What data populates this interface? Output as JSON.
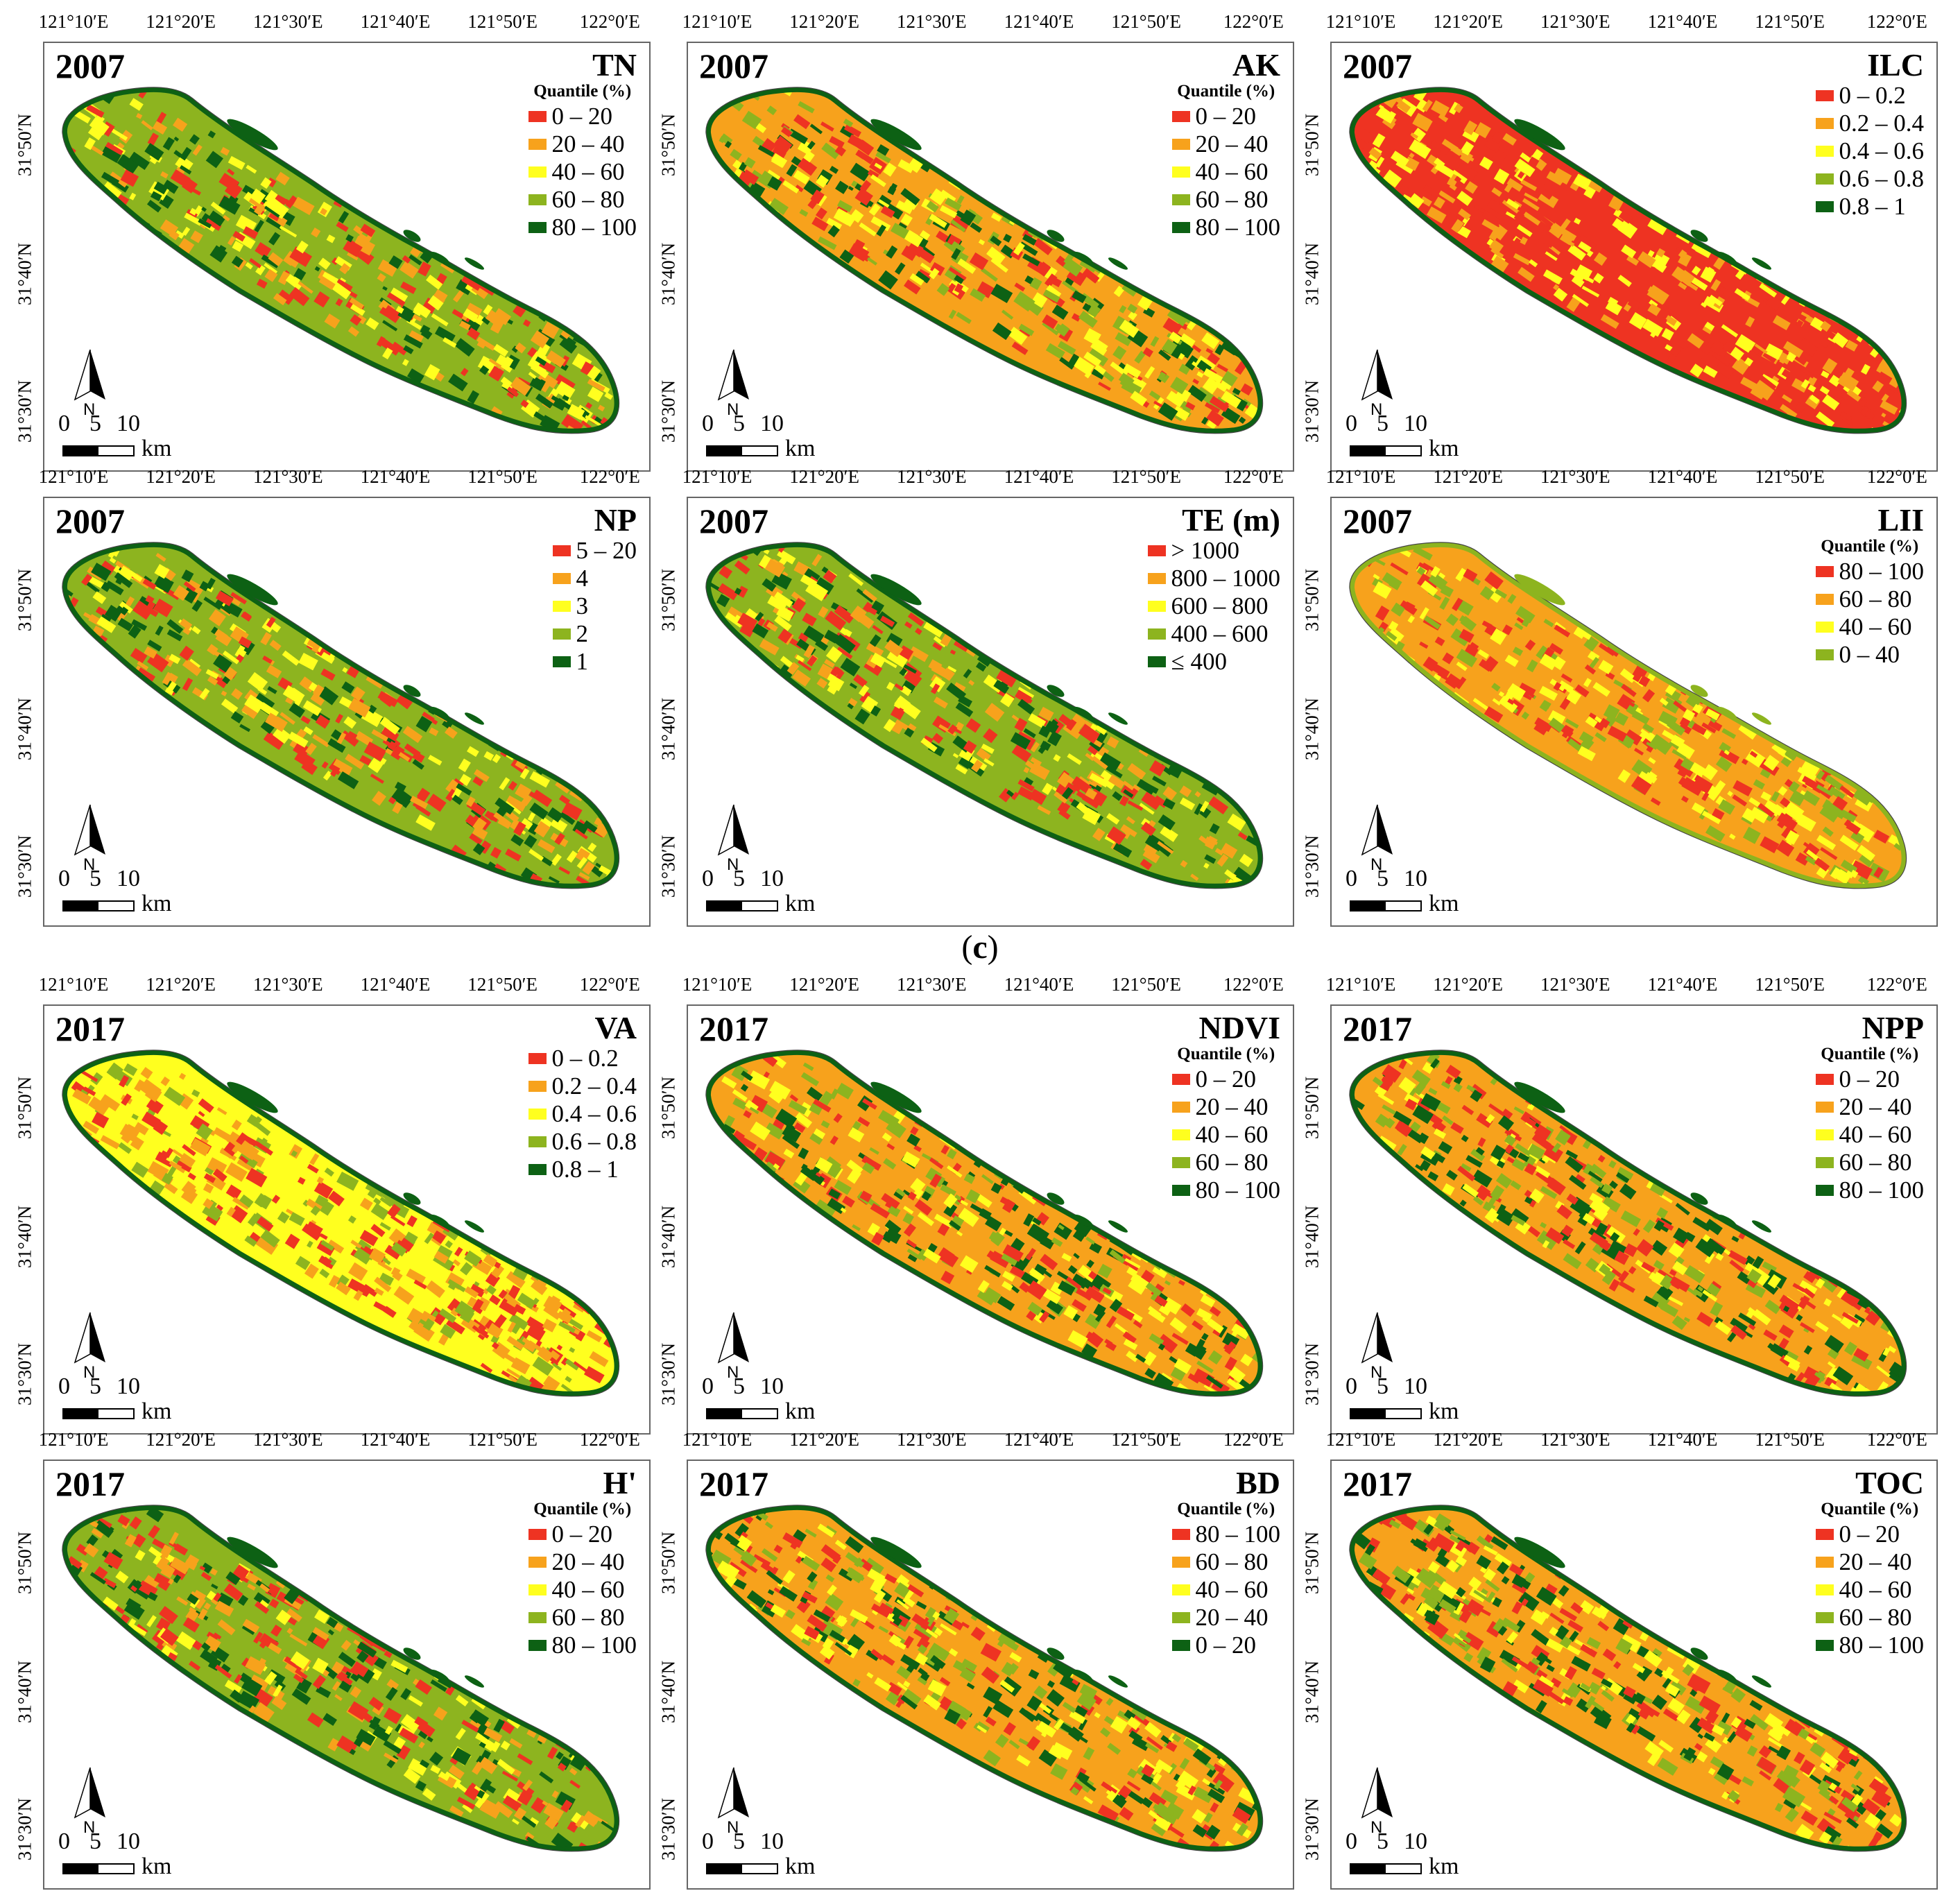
{
  "figure": {
    "caption_open": "(",
    "caption_letter": "c",
    "caption_close": ")",
    "longitude_ticks": [
      "121°10′E",
      "121°20′E",
      "121°30′E",
      "121°40′E",
      "121°50′E",
      "122°0′E"
    ],
    "latitude_ticks": [
      "31°50′N",
      "31°40′N",
      "31°30′N"
    ],
    "scale": {
      "zero": "0",
      "five": "5",
      "ten": "10",
      "unit": "km"
    },
    "north_label": "N"
  },
  "colors": {
    "red": "#ee3322",
    "orange": "#f7a21c",
    "yellow": "#ffff1f",
    "lightgreen": "#8db41f",
    "darkgreen": "#0d6114"
  },
  "panels": [
    {
      "year": "2007",
      "title": "TN",
      "subtitle": "Quantile (%)",
      "legend": [
        {
          "label": "0 – 20",
          "color": "#ee3322"
        },
        {
          "label": "20 – 40",
          "color": "#f7a21c"
        },
        {
          "label": "40 – 60",
          "color": "#ffff1f"
        },
        {
          "label": "60 – 80",
          "color": "#8db41f"
        },
        {
          "label": "80 – 100",
          "color": "#0d6114"
        }
      ],
      "fill": {
        "base": "#8db41f",
        "edge": "#0d6114",
        "spots": [
          "#ee3322",
          "#ffff1f",
          "#0d6114",
          "#f7a21c"
        ]
      }
    },
    {
      "year": "2007",
      "title": "AK",
      "subtitle": "Quantile (%)",
      "legend": [
        {
          "label": "0 – 20",
          "color": "#ee3322"
        },
        {
          "label": "20 – 40",
          "color": "#f7a21c"
        },
        {
          "label": "40 – 60",
          "color": "#ffff1f"
        },
        {
          "label": "60 – 80",
          "color": "#8db41f"
        },
        {
          "label": "80 – 100",
          "color": "#0d6114"
        }
      ],
      "fill": {
        "base": "#f7a21c",
        "edge": "#0d6114",
        "spots": [
          "#ee3322",
          "#ffff1f",
          "#8db41f",
          "#0d6114"
        ]
      }
    },
    {
      "year": "2007",
      "title": "ILC",
      "subtitle": "",
      "legend": [
        {
          "label": "0 – 0.2",
          "color": "#ee3322"
        },
        {
          "label": "0.2 – 0.4",
          "color": "#f7a21c"
        },
        {
          "label": "0.4 – 0.6",
          "color": "#ffff1f"
        },
        {
          "label": "0.6 – 0.8",
          "color": "#8db41f"
        },
        {
          "label": "0.8 – 1",
          "color": "#0d6114"
        }
      ],
      "fill": {
        "base": "#ee3322",
        "edge": "#0d6114",
        "spots": [
          "#ffff1f",
          "#f7a21c",
          "#ee3322"
        ]
      }
    },
    {
      "year": "2007",
      "title": "NP",
      "subtitle": "",
      "legend": [
        {
          "label": "5 – 20",
          "color": "#ee3322"
        },
        {
          "label": "4",
          "color": "#f7a21c"
        },
        {
          "label": "3",
          "color": "#ffff1f"
        },
        {
          "label": "2",
          "color": "#8db41f"
        },
        {
          "label": "1",
          "color": "#0d6114"
        }
      ],
      "fill": {
        "base": "#8db41f",
        "edge": "#0d6114",
        "spots": [
          "#ffff1f",
          "#ee3322",
          "#0d6114",
          "#f7a21c"
        ]
      }
    },
    {
      "year": "2007",
      "title": "TE (m)",
      "subtitle": "",
      "legend": [
        {
          "label": "> 1000",
          "color": "#ee3322"
        },
        {
          "label": "800 – 1000",
          "color": "#f7a21c"
        },
        {
          "label": "600 – 800",
          "color": "#ffff1f"
        },
        {
          "label": "400 – 600",
          "color": "#8db41f"
        },
        {
          "label": "≤ 400",
          "color": "#0d6114"
        }
      ],
      "fill": {
        "base": "#8db41f",
        "edge": "#0d6114",
        "spots": [
          "#ffff1f",
          "#ee3322",
          "#0d6114",
          "#f7a21c"
        ]
      }
    },
    {
      "year": "2007",
      "title": "LII",
      "subtitle": "Quantile (%)",
      "legend": [
        {
          "label": "80 – 100",
          "color": "#ee3322"
        },
        {
          "label": "60 – 80",
          "color": "#f7a21c"
        },
        {
          "label": "40 – 60",
          "color": "#ffff1f"
        },
        {
          "label": "0 – 40",
          "color": "#8db41f"
        }
      ],
      "fill": {
        "base": "#f7a21c",
        "edge": "#8db41f",
        "spots": [
          "#ee3322",
          "#ffff1f",
          "#8db41f"
        ]
      }
    },
    {
      "year": "2017",
      "title": "VA",
      "subtitle": "",
      "legend": [
        {
          "label": "0 – 0.2",
          "color": "#ee3322"
        },
        {
          "label": "0.2 – 0.4",
          "color": "#f7a21c"
        },
        {
          "label": "0.4 – 0.6",
          "color": "#ffff1f"
        },
        {
          "label": "0.6 – 0.8",
          "color": "#8db41f"
        },
        {
          "label": "0.8 – 1",
          "color": "#0d6114"
        }
      ],
      "fill": {
        "base": "#ffff1f",
        "edge": "#0d6114",
        "spots": [
          "#ee3322",
          "#f7a21c",
          "#8db41f"
        ]
      }
    },
    {
      "year": "2017",
      "title": "NDVI",
      "subtitle": "Quantile (%)",
      "legend": [
        {
          "label": "0 – 20",
          "color": "#ee3322"
        },
        {
          "label": "20 – 40",
          "color": "#f7a21c"
        },
        {
          "label": "40 – 60",
          "color": "#ffff1f"
        },
        {
          "label": "60 – 80",
          "color": "#8db41f"
        },
        {
          "label": "80 – 100",
          "color": "#0d6114"
        }
      ],
      "fill": {
        "base": "#f7a21c",
        "edge": "#0d6114",
        "spots": [
          "#ee3322",
          "#0d6114",
          "#ffff1f",
          "#8db41f"
        ]
      }
    },
    {
      "year": "2017",
      "title": "NPP",
      "subtitle": "Quantile (%)",
      "legend": [
        {
          "label": "0 – 20",
          "color": "#ee3322"
        },
        {
          "label": "20 – 40",
          "color": "#f7a21c"
        },
        {
          "label": "40 – 60",
          "color": "#ffff1f"
        },
        {
          "label": "60 – 80",
          "color": "#8db41f"
        },
        {
          "label": "80 – 100",
          "color": "#0d6114"
        }
      ],
      "fill": {
        "base": "#f7a21c",
        "edge": "#0d6114",
        "spots": [
          "#ee3322",
          "#0d6114",
          "#ffff1f",
          "#8db41f"
        ]
      }
    },
    {
      "year": "2017",
      "title": "H'",
      "subtitle": "Quantile (%)",
      "legend": [
        {
          "label": "0 – 20",
          "color": "#ee3322"
        },
        {
          "label": "20 – 40",
          "color": "#f7a21c"
        },
        {
          "label": "40 – 60",
          "color": "#ffff1f"
        },
        {
          "label": "60 – 80",
          "color": "#8db41f"
        },
        {
          "label": "80 – 100",
          "color": "#0d6114"
        }
      ],
      "fill": {
        "base": "#8db41f",
        "edge": "#0d6114",
        "spots": [
          "#ee3322",
          "#ffff1f",
          "#0d6114",
          "#f7a21c"
        ]
      }
    },
    {
      "year": "2017",
      "title": "BD",
      "subtitle": "Quantile (%)",
      "legend": [
        {
          "label": "80 – 100",
          "color": "#ee3322"
        },
        {
          "label": "60 – 80",
          "color": "#f7a21c"
        },
        {
          "label": "40 – 60",
          "color": "#ffff1f"
        },
        {
          "label": "20 – 40",
          "color": "#8db41f"
        },
        {
          "label": "0 – 20",
          "color": "#0d6114"
        }
      ],
      "fill": {
        "base": "#f7a21c",
        "edge": "#0d6114",
        "spots": [
          "#ee3322",
          "#8db41f",
          "#0d6114",
          "#ffff1f"
        ]
      }
    },
    {
      "year": "2017",
      "title": "TOC",
      "subtitle": "Quantile (%)",
      "legend": [
        {
          "label": "0 – 20",
          "color": "#ee3322"
        },
        {
          "label": "20 – 40",
          "color": "#f7a21c"
        },
        {
          "label": "40 – 60",
          "color": "#ffff1f"
        },
        {
          "label": "60 – 80",
          "color": "#8db41f"
        },
        {
          "label": "80 – 100",
          "color": "#0d6114"
        }
      ],
      "fill": {
        "base": "#f7a21c",
        "edge": "#0d6114",
        "spots": [
          "#ee3322",
          "#0d6114",
          "#ffff1f",
          "#8db41f"
        ]
      }
    }
  ]
}
